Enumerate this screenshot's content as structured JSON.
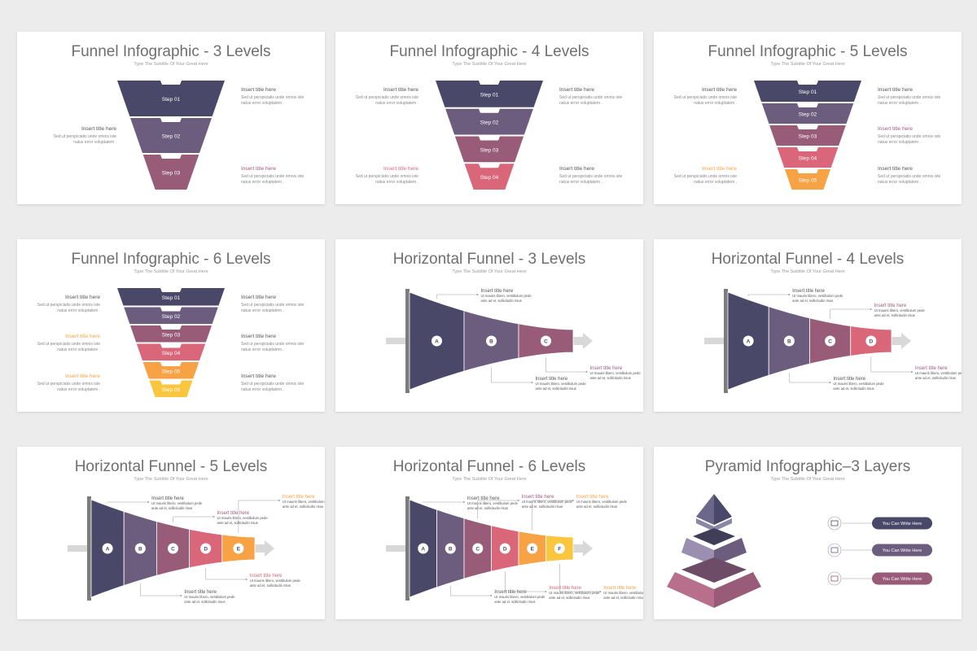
{
  "colors": {
    "c1": "#4a4868",
    "c2": "#6c5c7e",
    "c3": "#985c79",
    "c4": "#d96679",
    "c5": "#f7a244",
    "c6": "#fac63e",
    "background": "#ececec",
    "slide": "#ffffff",
    "title": "#6f6f6f"
  },
  "common": {
    "subtitle": "Type The Subtitle Of Your Great Here",
    "insert_title": "Insert title here",
    "body_v1": "Sed ut perspiciatis unde omnis iste",
    "body_v2": "natus error voluptatem .",
    "body_h1": "Ut mauris libero, vestibulum pede",
    "body_h2": "ante ad et, sollicitudin risus"
  },
  "slides": [
    {
      "title": "Funnel Infographic - 3 Levels",
      "steps": [
        "Step 01",
        "Step 02",
        "Step 03"
      ]
    },
    {
      "title": "Funnel Infographic - 4 Levels",
      "steps": [
        "Step 01",
        "Step 02",
        "Step 03",
        "Step 04"
      ]
    },
    {
      "title": "Funnel Infographic - 5 Levels",
      "steps": [
        "Step 01",
        "Step 02",
        "Step 03",
        "Step 04",
        "Step 05"
      ]
    },
    {
      "title": "Funnel Infographic - 6 Levels",
      "steps": [
        "Step 01",
        "Step 02",
        "Step 03",
        "Step 04",
        "Step 05",
        "Step 06"
      ]
    },
    {
      "title": "Horizontal Funnel - 3 Levels",
      "letters": [
        "A",
        "B",
        "C"
      ]
    },
    {
      "title": "Horizontal Funnel - 4 Levels",
      "letters": [
        "A",
        "B",
        "C",
        "D"
      ]
    },
    {
      "title": "Horizontal Funnel - 5 Levels",
      "letters": [
        "A",
        "B",
        "C",
        "D",
        "E"
      ]
    },
    {
      "title": "Horizontal Funnel - 6 Levels",
      "letters": [
        "A",
        "B",
        "C",
        "D",
        "E",
        "F"
      ]
    },
    {
      "title": "Pyramid Infographic–3 Layers",
      "buttons": [
        "You Can Write Here",
        "You Can Write Here",
        "You Can Write Here"
      ],
      "icons": [
        "gear-people-icon",
        "lock-icon",
        "money-icon"
      ]
    }
  ]
}
